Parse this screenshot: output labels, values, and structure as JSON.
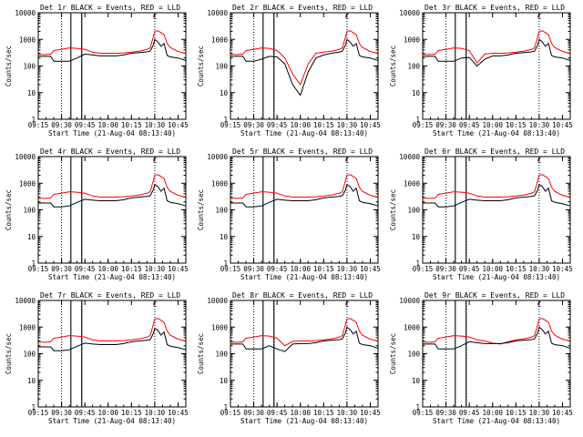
{
  "chart_data": {
    "type": "line",
    "ylabel": "Counts/sec",
    "xlabel": "Start Time (21-Aug-04 08:13:40)",
    "yscale": "log",
    "ylim": [
      1,
      10000
    ],
    "xlim": [
      "09:15",
      "10:50"
    ],
    "x_tick_labels": [
      "09:15",
      "09:30",
      "09:45",
      "10:00",
      "10:15",
      "10:30",
      "10:45"
    ],
    "y_tick_labels": [
      "1",
      "10",
      "100",
      "1000",
      "10000"
    ],
    "series_colors": {
      "events": "#000000",
      "lld": "#ff0000"
    },
    "dotted_vlines": [
      "09:30",
      "09:43",
      "10:30"
    ],
    "box_xrange": [
      "09:36",
      "09:43"
    ],
    "marker_label": "C",
    "x": [
      "09:15",
      "09:20",
      "09:23",
      "09:25",
      "09:30",
      "09:35",
      "09:40",
      "09:45",
      "09:50",
      "09:55",
      "10:00",
      "10:05",
      "10:10",
      "10:15",
      "10:20",
      "10:25",
      "10:27",
      "10:29",
      "10:30",
      "10:32",
      "10:34",
      "10:36",
      "10:38",
      "10:40",
      "10:45",
      "10:50"
    ],
    "panels": [
      {
        "title": "Det 1r BLACK = Events, RED = LLD",
        "events": [
          230,
          230,
          230,
          150,
          150,
          150,
          200,
          280,
          260,
          240,
          240,
          240,
          260,
          300,
          320,
          340,
          360,
          600,
          1000,
          800,
          550,
          700,
          250,
          220,
          200,
          160
        ],
        "lld": [
          270,
          270,
          280,
          380,
          420,
          480,
          460,
          420,
          330,
          300,
          300,
          300,
          310,
          330,
          360,
          420,
          480,
          1200,
          2000,
          2100,
          1800,
          1500,
          700,
          500,
          350,
          300
        ]
      },
      {
        "title": "Det 2r BLACK = Events, RED = LLD",
        "events": [
          230,
          230,
          230,
          150,
          150,
          180,
          230,
          220,
          120,
          20,
          8,
          60,
          200,
          260,
          300,
          330,
          360,
          600,
          1000,
          800,
          550,
          700,
          250,
          220,
          200,
          160
        ],
        "lld": [
          270,
          270,
          280,
          380,
          420,
          480,
          460,
          380,
          200,
          50,
          20,
          120,
          300,
          330,
          360,
          420,
          480,
          1200,
          2000,
          2100,
          1800,
          1500,
          700,
          500,
          350,
          300
        ]
      },
      {
        "title": "Det 3r BLACK = Events, RED = LLD",
        "events": [
          230,
          230,
          230,
          150,
          150,
          150,
          200,
          210,
          100,
          180,
          240,
          240,
          260,
          300,
          320,
          340,
          360,
          600,
          1000,
          800,
          550,
          700,
          250,
          220,
          200,
          160
        ],
        "lld": [
          270,
          270,
          280,
          380,
          420,
          480,
          460,
          380,
          130,
          280,
          300,
          300,
          310,
          330,
          360,
          420,
          480,
          1200,
          2000,
          2100,
          1800,
          1500,
          700,
          500,
          350,
          300
        ]
      },
      {
        "title": "Det 4r BLACK = Events, RED = LLD",
        "events": [
          180,
          180,
          180,
          130,
          130,
          140,
          190,
          250,
          230,
          220,
          220,
          220,
          240,
          280,
          300,
          320,
          340,
          550,
          900,
          750,
          500,
          650,
          220,
          190,
          170,
          140
        ],
        "lld": [
          270,
          270,
          280,
          380,
          420,
          480,
          460,
          420,
          330,
          300,
          300,
          300,
          310,
          330,
          360,
          420,
          480,
          1200,
          2000,
          2100,
          1800,
          1500,
          700,
          500,
          350,
          300
        ]
      },
      {
        "title": "Det 5r BLACK = Events, RED = LLD",
        "events": [
          180,
          180,
          180,
          130,
          130,
          140,
          190,
          250,
          230,
          220,
          220,
          220,
          240,
          280,
          300,
          320,
          340,
          550,
          900,
          750,
          500,
          650,
          220,
          190,
          170,
          140
        ],
        "lld": [
          270,
          270,
          280,
          380,
          420,
          480,
          460,
          420,
          330,
          300,
          300,
          300,
          310,
          330,
          360,
          420,
          480,
          1200,
          2000,
          2100,
          1800,
          1500,
          700,
          500,
          350,
          300
        ]
      },
      {
        "title": "Det 6r BLACK = Events, RED = LLD",
        "events": [
          180,
          180,
          180,
          130,
          130,
          140,
          190,
          250,
          230,
          220,
          220,
          220,
          240,
          280,
          300,
          320,
          340,
          550,
          900,
          750,
          500,
          650,
          220,
          190,
          170,
          140
        ],
        "lld": [
          270,
          270,
          280,
          380,
          420,
          480,
          460,
          420,
          330,
          300,
          300,
          300,
          310,
          330,
          360,
          420,
          480,
          1200,
          2000,
          2100,
          1800,
          1500,
          700,
          500,
          350,
          300
        ]
      },
      {
        "title": "Det 7r BLACK = Events, RED = LLD",
        "events": [
          180,
          180,
          180,
          130,
          130,
          140,
          190,
          250,
          230,
          220,
          220,
          220,
          240,
          280,
          300,
          320,
          340,
          550,
          900,
          750,
          500,
          650,
          220,
          190,
          170,
          140
        ],
        "lld": [
          270,
          270,
          280,
          380,
          420,
          480,
          460,
          420,
          330,
          300,
          300,
          300,
          310,
          330,
          360,
          420,
          480,
          1200,
          2000,
          2100,
          1800,
          1500,
          700,
          500,
          350,
          300
        ]
      },
      {
        "title": "Det 8r BLACK = Events, RED = LLD",
        "events": [
          230,
          230,
          230,
          150,
          150,
          150,
          200,
          150,
          120,
          230,
          240,
          240,
          260,
          300,
          320,
          340,
          360,
          600,
          1000,
          800,
          550,
          700,
          250,
          220,
          200,
          160
        ],
        "lld": [
          270,
          270,
          280,
          380,
          420,
          480,
          460,
          380,
          200,
          290,
          300,
          300,
          310,
          330,
          360,
          420,
          480,
          1200,
          2000,
          2100,
          1800,
          1500,
          700,
          500,
          350,
          300
        ]
      },
      {
        "title": "Det 9r BLACK = Events, RED = LLD",
        "events": [
          230,
          230,
          230,
          150,
          150,
          150,
          200,
          280,
          260,
          240,
          240,
          240,
          260,
          300,
          320,
          340,
          360,
          600,
          1000,
          800,
          550,
          700,
          250,
          220,
          200,
          160
        ],
        "lld": [
          270,
          270,
          280,
          380,
          420,
          480,
          460,
          420,
          330,
          300,
          250,
          230,
          280,
          330,
          360,
          420,
          480,
          1200,
          2000,
          2100,
          1800,
          1500,
          700,
          500,
          350,
          300
        ]
      }
    ]
  }
}
